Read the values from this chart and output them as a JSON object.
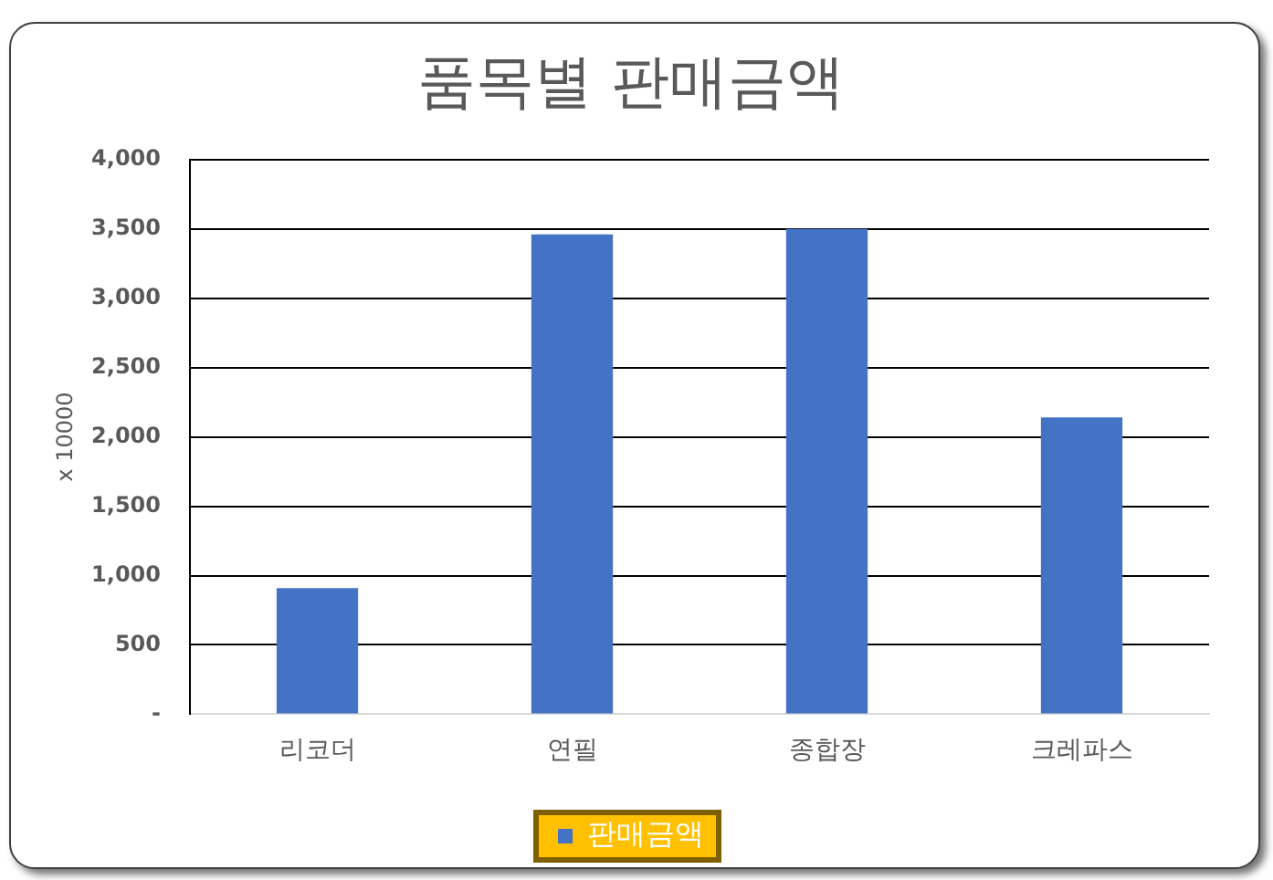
{
  "chart_data": {
    "type": "bar",
    "title": "품목별 판매금액",
    "ylabel": "x 10000",
    "categories": [
      "리코더",
      "연필",
      "종합장",
      "크레파스"
    ],
    "series": [
      {
        "name": "판매금액",
        "color": "#4472c4",
        "values": [
          910,
          3460,
          3500,
          2140
        ]
      }
    ],
    "ylim": [
      0,
      4000
    ],
    "yticks": [
      {
        "value": 0,
        "label": "-"
      },
      500,
      {
        "value": 1000,
        "label": "1,000"
      },
      {
        "value": 1500,
        "label": "1,500"
      },
      {
        "value": 2000,
        "label": "2,000"
      },
      {
        "value": 2500,
        "label": "2,500"
      },
      {
        "value": 3000,
        "label": "3,000"
      },
      {
        "value": 3500,
        "label": "3,500"
      },
      {
        "value": 4000,
        "label": "4,000"
      }
    ],
    "grid": "y",
    "legend": "bottom"
  }
}
